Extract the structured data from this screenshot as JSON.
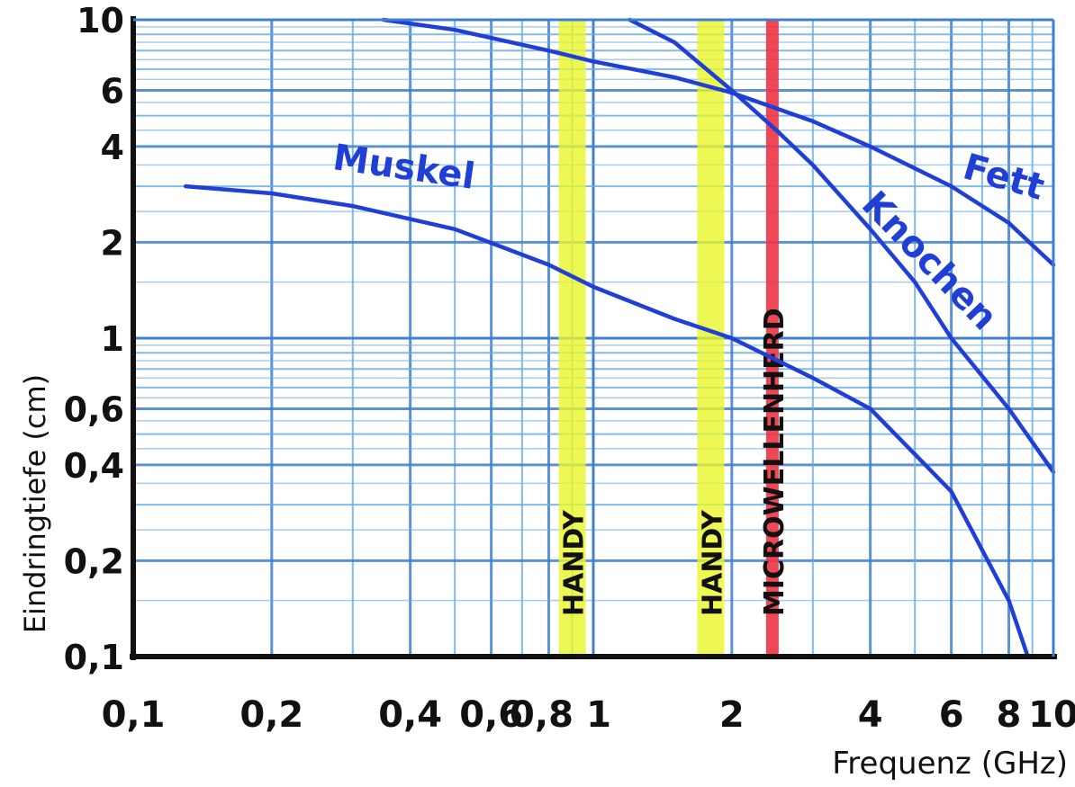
{
  "chart_data": {
    "type": "line",
    "x_scale": "log",
    "y_scale": "log",
    "xlabel": "Frequenz (GHz)",
    "ylabel": "Eindringtiefe (cm)",
    "xlim": [
      0.1,
      10
    ],
    "ylim": [
      0.1,
      10
    ],
    "grid": true,
    "x_ticks": [
      {
        "value": 0.1,
        "label": "0,1"
      },
      {
        "value": 0.2,
        "label": "0,2"
      },
      {
        "value": 0.4,
        "label": "0,4"
      },
      {
        "value": 0.6,
        "label": "0,6"
      },
      {
        "value": 0.8,
        "label": "0,8"
      },
      {
        "value": 1,
        "label": "1"
      },
      {
        "value": 2,
        "label": "2"
      },
      {
        "value": 4,
        "label": "4"
      },
      {
        "value": 6,
        "label": "6"
      },
      {
        "value": 8,
        "label": "8"
      },
      {
        "value": 10,
        "label": "10"
      }
    ],
    "y_ticks": [
      {
        "value": 0.1,
        "label": "0,1"
      },
      {
        "value": 0.2,
        "label": "0,2"
      },
      {
        "value": 0.4,
        "label": "0,4"
      },
      {
        "value": 0.6,
        "label": "0,6"
      },
      {
        "value": 1,
        "label": "1"
      },
      {
        "value": 2,
        "label": "2"
      },
      {
        "value": 4,
        "label": "4"
      },
      {
        "value": 6,
        "label": "6"
      },
      {
        "value": 10,
        "label": "10"
      }
    ],
    "series": [
      {
        "name": "Muskel",
        "color": "#1f3fd6",
        "x": [
          0.13,
          0.2,
          0.3,
          0.5,
          0.8,
          1.0,
          1.5,
          2.0,
          3.0,
          4.0,
          6.0,
          8.0,
          8.8
        ],
        "y": [
          3.0,
          2.85,
          2.6,
          2.2,
          1.7,
          1.45,
          1.15,
          1.0,
          0.75,
          0.6,
          0.33,
          0.15,
          0.1
        ]
      },
      {
        "name": "Fett",
        "color": "#1f3fd6",
        "x": [
          0.35,
          0.5,
          0.8,
          1.0,
          1.5,
          2.0,
          3.0,
          4.0,
          6.0,
          8.0,
          10.0
        ],
        "y": [
          10.0,
          9.3,
          8.0,
          7.4,
          6.6,
          5.9,
          4.8,
          4.0,
          3.0,
          2.3,
          1.7
        ]
      },
      {
        "name": "Knochen",
        "color": "#1f3fd6",
        "x": [
          1.2,
          1.5,
          2.0,
          2.5,
          3.0,
          4.0,
          5.0,
          6.0,
          8.0,
          10.0
        ],
        "y": [
          10.0,
          8.5,
          6.0,
          4.5,
          3.5,
          2.2,
          1.5,
          1.0,
          0.6,
          0.38
        ]
      }
    ],
    "bands": [
      {
        "label": "HANDY",
        "x": 0.9,
        "color": "#e8f62a"
      },
      {
        "label": "HANDY",
        "x": 1.8,
        "color": "#e8f62a"
      },
      {
        "label": "MICROWELLENHERD",
        "x": 2.45,
        "color": "#ee3344"
      }
    ],
    "colors": {
      "grid": "#6aaee4",
      "grid_major": "#3f7fd0",
      "axis": "#111111",
      "curve": "#1f3fd6"
    }
  }
}
